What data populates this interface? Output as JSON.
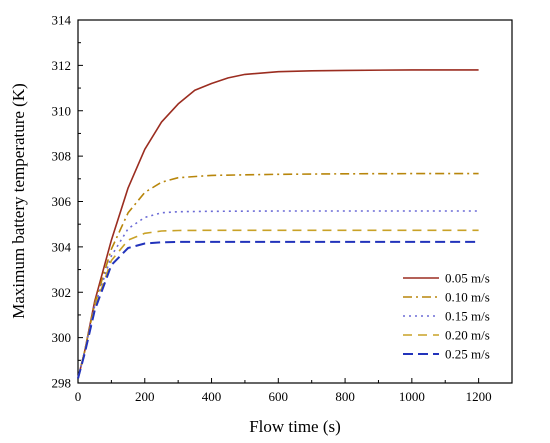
{
  "chart_data": {
    "type": "line",
    "title": "",
    "xlabel": "Flow time (s)",
    "ylabel": "Maximum battery temperature (K)",
    "xlim": [
      0,
      1300
    ],
    "ylim": [
      298,
      314
    ],
    "xticks": [
      0,
      200,
      400,
      600,
      800,
      1000,
      1200
    ],
    "yticks": [
      298,
      300,
      302,
      304,
      306,
      308,
      310,
      312,
      314
    ],
    "legend_position": "bottom-right",
    "grid": false,
    "series": [
      {
        "name": "0.05 m/s",
        "color": "#9b2d20",
        "dash": "solid",
        "x": [
          0,
          20,
          50,
          100,
          150,
          200,
          250,
          300,
          350,
          400,
          450,
          500,
          600,
          700,
          800,
          1000,
          1200
        ],
        "y": [
          298.2,
          299.4,
          301.6,
          304.3,
          306.6,
          308.3,
          309.5,
          310.3,
          310.9,
          311.2,
          311.45,
          311.6,
          311.72,
          311.76,
          311.78,
          311.8,
          311.8
        ]
      },
      {
        "name": "0.10 m/s",
        "color": "#b8860b",
        "dash": "dashdot",
        "x": [
          0,
          20,
          50,
          100,
          150,
          200,
          250,
          300,
          400,
          600,
          800,
          1000,
          1200
        ],
        "y": [
          298.2,
          299.4,
          301.5,
          303.9,
          305.5,
          306.4,
          306.85,
          307.05,
          307.15,
          307.2,
          307.22,
          307.23,
          307.23
        ]
      },
      {
        "name": "0.15 m/s",
        "color": "#6b6bd6",
        "dash": "dotted",
        "x": [
          0,
          20,
          50,
          100,
          150,
          200,
          250,
          300,
          400,
          600,
          800,
          1000,
          1200
        ],
        "y": [
          298.2,
          299.4,
          301.4,
          303.6,
          304.8,
          305.3,
          305.5,
          305.55,
          305.57,
          305.58,
          305.58,
          305.58,
          305.58
        ]
      },
      {
        "name": "0.20 m/s",
        "color": "#c9a227",
        "dash": "dashed",
        "x": [
          0,
          20,
          50,
          100,
          150,
          200,
          250,
          300,
          400,
          600,
          800,
          1000,
          1200
        ],
        "y": [
          298.2,
          299.4,
          301.3,
          303.4,
          304.3,
          304.6,
          304.7,
          304.72,
          304.73,
          304.73,
          304.73,
          304.73,
          304.73
        ]
      },
      {
        "name": "0.25 m/s",
        "color": "#2233bb",
        "dash": "longdash",
        "x": [
          0,
          20,
          50,
          100,
          150,
          200,
          250,
          300,
          400,
          600,
          800,
          1000,
          1200
        ],
        "y": [
          298.2,
          299.3,
          301.2,
          303.2,
          303.95,
          304.15,
          304.2,
          304.22,
          304.22,
          304.22,
          304.22,
          304.22,
          304.22
        ]
      }
    ]
  }
}
